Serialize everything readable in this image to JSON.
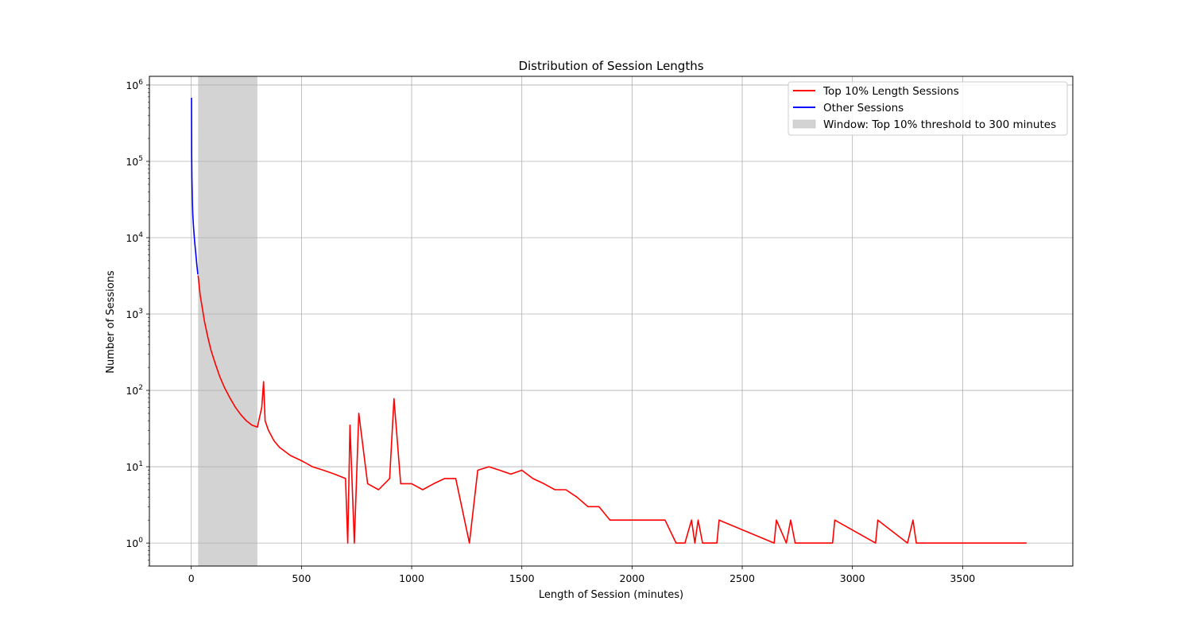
{
  "chart_data": {
    "type": "line",
    "title": "Distribution of Session Lengths",
    "xlabel": "Length of Session (minutes)",
    "ylabel": "Number of Sessions",
    "xlim": [
      -190,
      4000
    ],
    "ylim": [
      0.5,
      1300000
    ],
    "yscale": "log",
    "grid": true,
    "legend_position": "top-right",
    "x_ticks": [
      0,
      500,
      1000,
      1500,
      2000,
      2500,
      3000,
      3500
    ],
    "x_tick_labels": [
      "0",
      "500",
      "1000",
      "1500",
      "2000",
      "2500",
      "3000",
      "3500"
    ],
    "y_ticks": [
      1,
      10,
      100,
      1000,
      10000,
      100000,
      1000000
    ],
    "y_tick_bases": [
      "10",
      "10",
      "10",
      "10",
      "10",
      "10",
      "10"
    ],
    "y_tick_exponents": [
      "0",
      "1",
      "2",
      "3",
      "4",
      "5",
      "6"
    ],
    "series": [
      {
        "name": "Top 10% Length Sessions",
        "color": "#ff0000",
        "x": [
          31,
          35,
          40,
          50,
          60,
          75,
          90,
          110,
          130,
          150,
          175,
          200,
          225,
          250,
          275,
          300,
          320,
          328,
          335,
          350,
          375,
          400,
          450,
          500,
          550,
          600,
          650,
          700,
          710,
          720,
          740,
          760,
          800,
          850,
          900,
          920,
          950,
          1000,
          1050,
          1100,
          1150,
          1200,
          1262,
          1300,
          1350,
          1400,
          1450,
          1500,
          1550,
          1600,
          1650,
          1700,
          1750,
          1800,
          1850,
          1900,
          1950,
          2000,
          2050,
          2100,
          2150,
          2200,
          2240,
          2270,
          2285,
          2300,
          2320,
          2385,
          2395,
          2645,
          2655,
          2700,
          2720,
          2740,
          2910,
          2920,
          3105,
          3115,
          3250,
          3275,
          3290,
          3500,
          3790
        ],
        "values": [
          3200,
          2500,
          1800,
          1200,
          800,
          500,
          330,
          220,
          150,
          110,
          80,
          60,
          48,
          40,
          35,
          33,
          60,
          130,
          40,
          30,
          22,
          18,
          14,
          12,
          10,
          9,
          8,
          7,
          1,
          35,
          1,
          50,
          6,
          5,
          7,
          78,
          6,
          6,
          5,
          6,
          7,
          7,
          1,
          9,
          10,
          9,
          8,
          9,
          7,
          6,
          5,
          5,
          4,
          3,
          3,
          2,
          2,
          2,
          2,
          2,
          2,
          1,
          1,
          2,
          1,
          2,
          1,
          1,
          2,
          1,
          2,
          1,
          2,
          1,
          1,
          2,
          1,
          2,
          1,
          2,
          1,
          1,
          1
        ]
      },
      {
        "name": "Other Sessions",
        "color": "#0000ff",
        "x": [
          1,
          2,
          3,
          5,
          7,
          10,
          15,
          20,
          25,
          30
        ],
        "values": [
          680000,
          120000,
          60000,
          30000,
          20000,
          14000,
          9000,
          6500,
          4500,
          3300
        ]
      }
    ],
    "window": {
      "label": "Window: Top 10% threshold to 300 minutes",
      "x_start": 31,
      "x_end": 300,
      "color": "#d3d3d3"
    }
  }
}
